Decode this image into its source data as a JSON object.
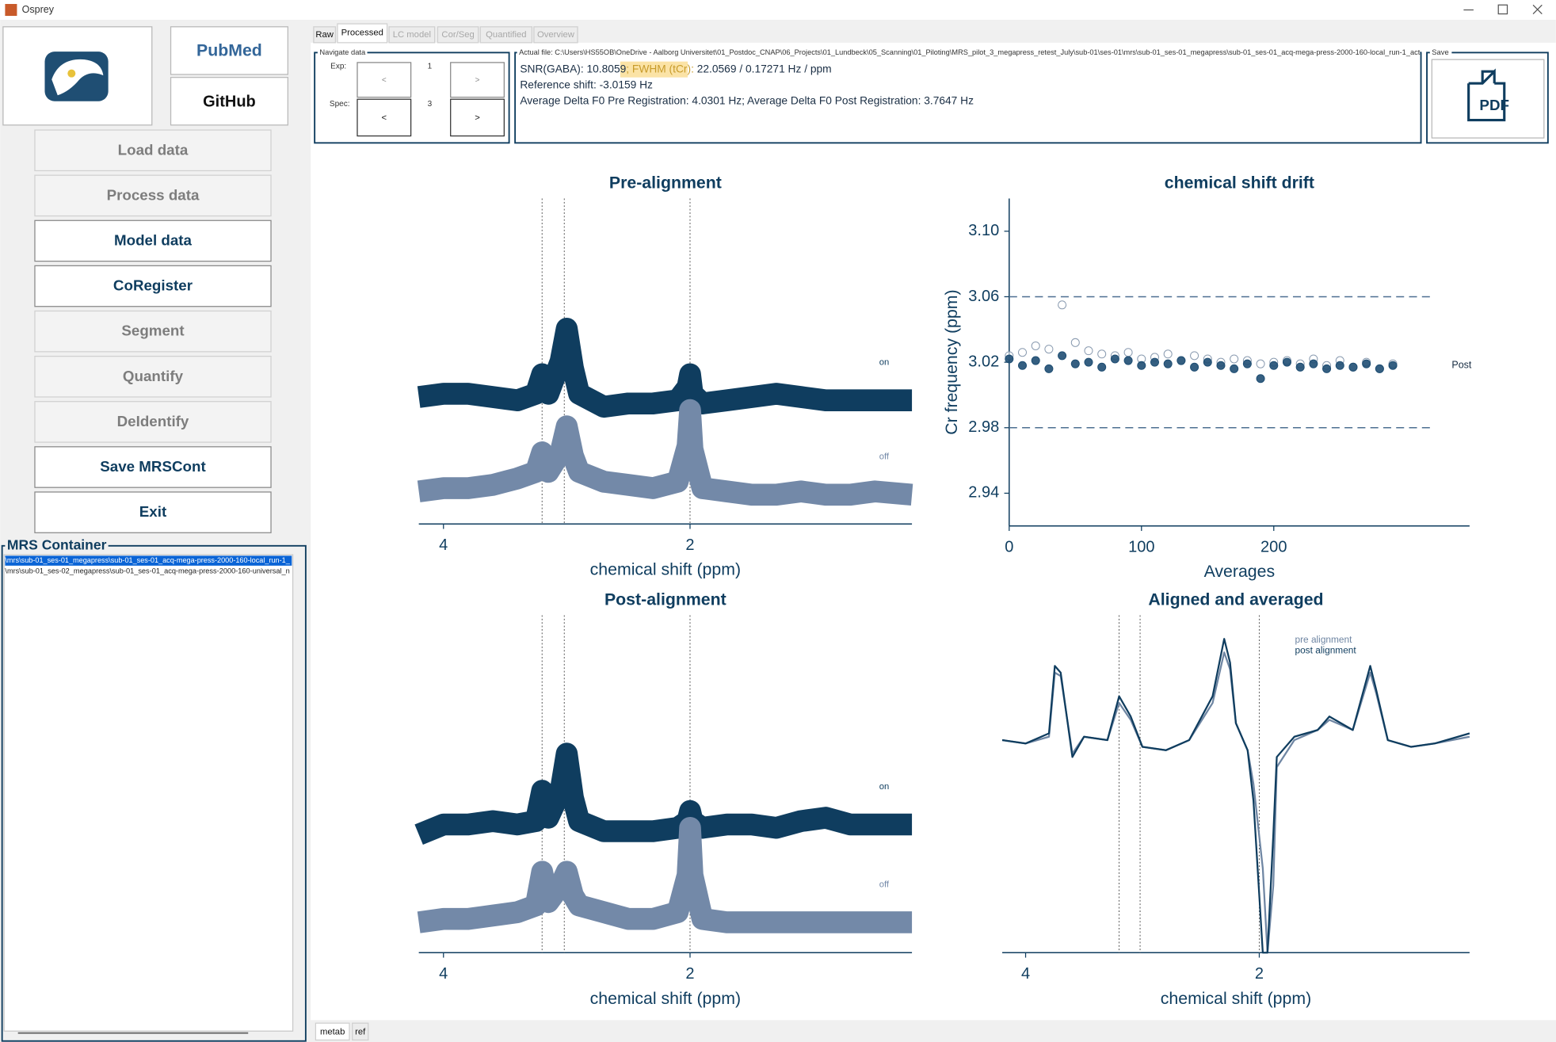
{
  "window": {
    "title": "Osprey"
  },
  "sidebar": {
    "logos": [
      "PubMed",
      "GitHub"
    ],
    "buttons": [
      {
        "label": "Load data",
        "enabled": false
      },
      {
        "label": "Process data",
        "enabled": false
      },
      {
        "label": "Model data",
        "enabled": true
      },
      {
        "label": "CoRegister",
        "enabled": true
      },
      {
        "label": "Segment",
        "enabled": false
      },
      {
        "label": "Quantify",
        "enabled": false
      },
      {
        "label": "DeIdentify",
        "enabled": false
      },
      {
        "label": "Save MRSCont",
        "enabled": true
      },
      {
        "label": "Exit",
        "enabled": true
      }
    ]
  },
  "tabs": [
    {
      "label": "Raw",
      "enabled": true
    },
    {
      "label": "Processed",
      "enabled": true
    },
    {
      "label": "LC model",
      "enabled": false
    },
    {
      "label": "Cor/Seg",
      "enabled": false
    },
    {
      "label": "Quantified",
      "enabled": false
    },
    {
      "label": "Overview",
      "enabled": false
    }
  ],
  "navigate": {
    "title": "Navigate data",
    "exp_label": "Exp:",
    "exp_value": 1,
    "spec_label": "Spec:",
    "spec_value": 3,
    "prev": "<",
    "next": ">"
  },
  "info": {
    "legend": "Actual file: C:\\Users\\HS55OB\\OneDrive - Aalborg Universitet\\01_Postdoc_CNAP\\06_Projects\\01_Lundbeck\\05_Scanning\\01_Piloting\\MRS_pilot_3_megapress_retest_July\\sub-01\\ses-01\\mrs\\sub-01_ses-01_megapress\\sub-01_ses-01_acq-mega-press-2000-160-local_run-1_act",
    "snr_line": [
      "SNR(GABA): 10.8059",
      "; FWHM (tCr):",
      " 22.0569 / 0.17271 Hz / ppm"
    ],
    "lines": [
      "Reference shift: -3.0159 Hz",
      "Average Delta F0 Pre Registration: 4.0301 Hz; Average Delta F0 Post Registration: 3.7647 Hz"
    ]
  },
  "save": {
    "legend": "Save",
    "button": "PDF"
  },
  "container": {
    "title": "MRS Container",
    "items": [
      "\\mrs\\sub-01_ses-01_megapress\\sub-01_ses-01_acq-mega-press-2000-160-local_run-1_",
      "\\mrs\\sub-01_ses-02_megapress\\sub-01_ses-01_acq-mega-press-2000-160-universal_n"
    ]
  },
  "bottom_tabs": [
    "metab",
    "ref"
  ],
  "chart_data": [
    {
      "type": "line",
      "title": "Pre-alignment",
      "xlabel": "chemical shift (ppm)",
      "xlim": [
        4.2,
        0.2
      ],
      "xticks": [
        4,
        2
      ],
      "vlines": [
        3.2,
        3.02,
        2.0
      ],
      "legend": "line-end",
      "x": [
        4.2,
        4.0,
        3.8,
        3.6,
        3.4,
        3.25,
        3.2,
        3.15,
        3.05,
        3.0,
        2.95,
        2.9,
        2.7,
        2.5,
        2.3,
        2.1,
        2.02,
        2.0,
        1.98,
        1.9,
        1.7,
        1.5,
        1.3,
        1.1,
        0.9,
        0.7,
        0.5,
        0.2
      ],
      "series": [
        {
          "name": "on",
          "color": "#0f3d5f",
          "values": [
            3.9,
            4.0,
            4.0,
            3.9,
            3.8,
            4.0,
            4.6,
            4.0,
            5.0,
            6.0,
            4.8,
            4.0,
            3.6,
            3.7,
            3.7,
            3.8,
            4.2,
            4.6,
            4.0,
            3.7,
            3.8,
            3.9,
            4.0,
            3.9,
            3.8,
            3.8,
            3.8,
            3.8
          ]
        },
        {
          "name": "off",
          "color": "#7389a8",
          "values": [
            1.0,
            1.1,
            1.1,
            1.2,
            1.4,
            1.6,
            2.2,
            1.6,
            2.2,
            3.0,
            2.1,
            1.6,
            1.3,
            1.2,
            1.1,
            1.3,
            2.4,
            3.5,
            2.3,
            1.1,
            1.0,
            0.9,
            0.9,
            1.0,
            0.9,
            0.9,
            1.0,
            0.9
          ]
        }
      ]
    },
    {
      "type": "scatter",
      "title": "chemical shift drift",
      "xlabel": "Averages",
      "ylabel": "Cr frequency (ppm)",
      "xlim": [
        0,
        348
      ],
      "xticks": [
        0,
        100,
        200
      ],
      "ylim": [
        2.92,
        3.12
      ],
      "yticks": [
        2.94,
        2.98,
        3.02,
        3.06,
        {
          "value": 3.1,
          "label": "3.10"
        }
      ],
      "hlines": [
        3.06,
        2.98
      ],
      "legend": "line-end",
      "x": [
        0,
        10,
        20,
        30,
        40,
        50,
        60,
        70,
        80,
        90,
        100,
        110,
        120,
        130,
        140,
        150,
        160,
        170,
        180,
        190,
        200,
        210,
        220,
        230,
        240,
        250,
        260,
        270,
        280,
        290
      ],
      "series": [
        {
          "color": "#8a9bb0",
          "marker": "hollow",
          "values": [
            3.024,
            3.026,
            3.03,
            3.028,
            3.055,
            3.032,
            3.027,
            3.025,
            3.024,
            3.026,
            3.022,
            3.023,
            3.025,
            3.021,
            3.024,
            3.022,
            3.02,
            3.022,
            3.021,
            3.019,
            3.02,
            3.021,
            3.019,
            3.022,
            3.018,
            3.021,
            3.017,
            3.02,
            3.016,
            3.019
          ]
        },
        {
          "name": "Post",
          "color": "#1f4e73",
          "marker": "filled",
          "values": [
            3.022,
            3.018,
            3.021,
            3.016,
            3.024,
            3.019,
            3.02,
            3.017,
            3.022,
            3.021,
            3.018,
            3.02,
            3.019,
            3.021,
            3.017,
            3.02,
            3.018,
            3.016,
            3.019,
            3.01,
            3.018,
            3.02,
            3.017,
            3.019,
            3.016,
            3.018,
            3.017,
            3.019,
            3.016,
            3.018
          ]
        }
      ]
    },
    {
      "type": "line",
      "title": "Post-alignment",
      "xlabel": "chemical shift (ppm)",
      "xlim": [
        4.2,
        0.2
      ],
      "xticks": [
        4,
        2
      ],
      "vlines": [
        3.2,
        3.02,
        2.0
      ],
      "legend": "line-end",
      "x": [
        4.2,
        4.0,
        3.8,
        3.6,
        3.4,
        3.25,
        3.2,
        3.15,
        3.05,
        3.0,
        2.95,
        2.9,
        2.7,
        2.5,
        2.3,
        2.1,
        2.02,
        2.0,
        1.98,
        1.9,
        1.7,
        1.5,
        1.3,
        1.1,
        0.9,
        0.7,
        0.5,
        0.2
      ],
      "series": [
        {
          "name": "on",
          "color": "#0f3d5f",
          "values": [
            3.5,
            3.8,
            3.8,
            3.9,
            3.8,
            3.9,
            4.8,
            4.0,
            4.8,
            5.9,
            4.6,
            3.9,
            3.6,
            3.6,
            3.6,
            3.7,
            3.9,
            4.2,
            3.9,
            3.7,
            3.8,
            3.8,
            3.7,
            3.9,
            4.0,
            3.8,
            3.8,
            3.8
          ]
        },
        {
          "name": "off",
          "color": "#7389a8",
          "values": [
            0.9,
            1.0,
            1.0,
            1.1,
            1.2,
            1.4,
            2.4,
            1.5,
            2.0,
            2.4,
            1.7,
            1.4,
            1.2,
            1.0,
            1.0,
            1.2,
            2.3,
            3.7,
            2.3,
            1.0,
            0.9,
            0.9,
            0.9,
            0.9,
            0.9,
            0.9,
            0.9,
            0.9
          ]
        }
      ]
    },
    {
      "type": "line",
      "title": "Aligned and averaged",
      "xlabel": "chemical shift (ppm)",
      "xlim": [
        4.2,
        0.2
      ],
      "xticks": [
        4,
        2
      ],
      "vlines": [
        3.2,
        3.02,
        2.0
      ],
      "legend": "top",
      "x": [
        4.2,
        4.0,
        3.8,
        3.75,
        3.7,
        3.6,
        3.5,
        3.3,
        3.2,
        3.1,
        3.0,
        2.8,
        2.6,
        2.4,
        2.3,
        2.25,
        2.2,
        2.1,
        2.05,
        1.97,
        1.93,
        1.88,
        1.85,
        1.7,
        1.5,
        1.4,
        1.2,
        1.05,
        1.0,
        0.9,
        0.7,
        0.5,
        0.2
      ],
      "series": [
        {
          "name": "pre alignment",
          "color": "#6f86a3",
          "values": [
            6.3,
            6.2,
            6.4,
            8.3,
            8.2,
            5.9,
            6.4,
            6.3,
            7.4,
            6.9,
            6.1,
            6.0,
            6.3,
            7.4,
            8.9,
            8.4,
            6.8,
            6.0,
            5.0,
            2.5,
            0.0,
            2.0,
            5.5,
            6.3,
            6.6,
            6.9,
            6.6,
            8.3,
            7.7,
            6.3,
            6.1,
            6.2,
            6.4
          ]
        },
        {
          "name": "post alignment",
          "color": "#0f3d5f",
          "values": [
            6.3,
            6.2,
            6.5,
            8.5,
            8.3,
            5.8,
            6.4,
            6.3,
            7.6,
            7.0,
            6.1,
            6.0,
            6.3,
            7.6,
            9.3,
            8.6,
            6.8,
            6.0,
            4.5,
            0.0,
            0.0,
            3.5,
            5.8,
            6.4,
            6.6,
            7.0,
            6.6,
            8.5,
            7.8,
            6.3,
            6.1,
            6.2,
            6.5
          ]
        }
      ]
    }
  ]
}
